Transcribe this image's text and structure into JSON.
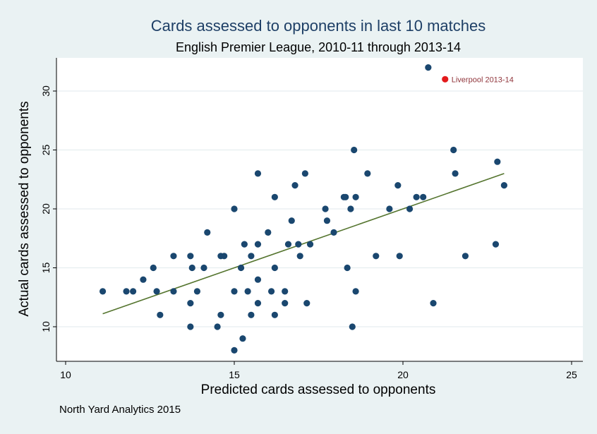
{
  "chart_data": {
    "type": "scatter",
    "title": "Cards assessed to opponents in last 10 matches",
    "subtitle": "English Premier League, 2010-11 through 2013-14",
    "xlabel": "Predicted cards assessed to opponents",
    "ylabel": "Actual cards assessed to opponents",
    "xlim": [
      10,
      25
    ],
    "ylim": [
      7.7,
      32.5
    ],
    "xticks": [
      10,
      15,
      20,
      25
    ],
    "yticks": [
      10,
      15,
      20,
      25,
      30
    ],
    "grid": true,
    "note": "North Yard Analytics 2015",
    "colors": {
      "background": "#eaf2f3",
      "plot_background": "#ffffff",
      "points": "#1a476f",
      "fit_line": "#55752f",
      "highlight": "#e31a1c",
      "annotation_text": "#90353b",
      "title": "#1e3f66"
    },
    "points": [
      [
        11.1,
        13
      ],
      [
        11.8,
        13
      ],
      [
        12.0,
        13
      ],
      [
        12.3,
        14
      ],
      [
        12.6,
        15
      ],
      [
        12.7,
        13
      ],
      [
        12.8,
        11
      ],
      [
        13.2,
        16
      ],
      [
        13.2,
        13
      ],
      [
        13.7,
        16
      ],
      [
        13.7,
        12
      ],
      [
        13.7,
        10
      ],
      [
        13.75,
        15
      ],
      [
        13.9,
        13
      ],
      [
        14.1,
        15
      ],
      [
        14.2,
        18
      ],
      [
        14.5,
        10
      ],
      [
        14.6,
        16
      ],
      [
        14.6,
        11
      ],
      [
        14.7,
        16
      ],
      [
        15.0,
        20
      ],
      [
        15.0,
        13
      ],
      [
        15.0,
        8
      ],
      [
        15.2,
        15
      ],
      [
        15.25,
        9
      ],
      [
        15.3,
        17
      ],
      [
        15.4,
        13
      ],
      [
        15.5,
        16
      ],
      [
        15.5,
        11
      ],
      [
        15.7,
        23
      ],
      [
        15.7,
        17
      ],
      [
        15.7,
        14
      ],
      [
        15.7,
        12
      ],
      [
        16.0,
        18
      ],
      [
        16.1,
        13
      ],
      [
        16.2,
        21
      ],
      [
        16.2,
        15
      ],
      [
        16.2,
        11
      ],
      [
        16.5,
        13
      ],
      [
        16.5,
        12
      ],
      [
        16.6,
        17
      ],
      [
        16.7,
        19
      ],
      [
        16.8,
        22
      ],
      [
        16.9,
        17
      ],
      [
        16.95,
        16
      ],
      [
        17.1,
        23
      ],
      [
        17.15,
        12
      ],
      [
        17.25,
        17
      ],
      [
        17.7,
        20
      ],
      [
        17.75,
        19
      ],
      [
        17.95,
        18
      ],
      [
        18.25,
        21
      ],
      [
        18.3,
        21
      ],
      [
        18.35,
        15
      ],
      [
        18.45,
        20
      ],
      [
        18.5,
        10
      ],
      [
        18.55,
        25
      ],
      [
        18.6,
        21
      ],
      [
        18.6,
        13
      ],
      [
        18.95,
        23
      ],
      [
        19.2,
        16
      ],
      [
        19.6,
        20
      ],
      [
        19.85,
        22
      ],
      [
        19.9,
        16
      ],
      [
        20.2,
        20
      ],
      [
        20.4,
        21
      ],
      [
        20.6,
        21
      ],
      [
        20.75,
        32
      ],
      [
        20.9,
        12
      ],
      [
        21.5,
        25
      ],
      [
        21.55,
        23
      ],
      [
        21.85,
        16
      ],
      [
        22.75,
        17
      ],
      [
        22.8,
        24
      ],
      [
        23.0,
        22
      ]
    ],
    "highlight": {
      "x": 21.25,
      "y": 31,
      "label": "Liverpool 2013-14"
    },
    "fit_line": {
      "x": [
        11.1,
        23.0
      ],
      "y": [
        11.1,
        23.0
      ]
    }
  }
}
